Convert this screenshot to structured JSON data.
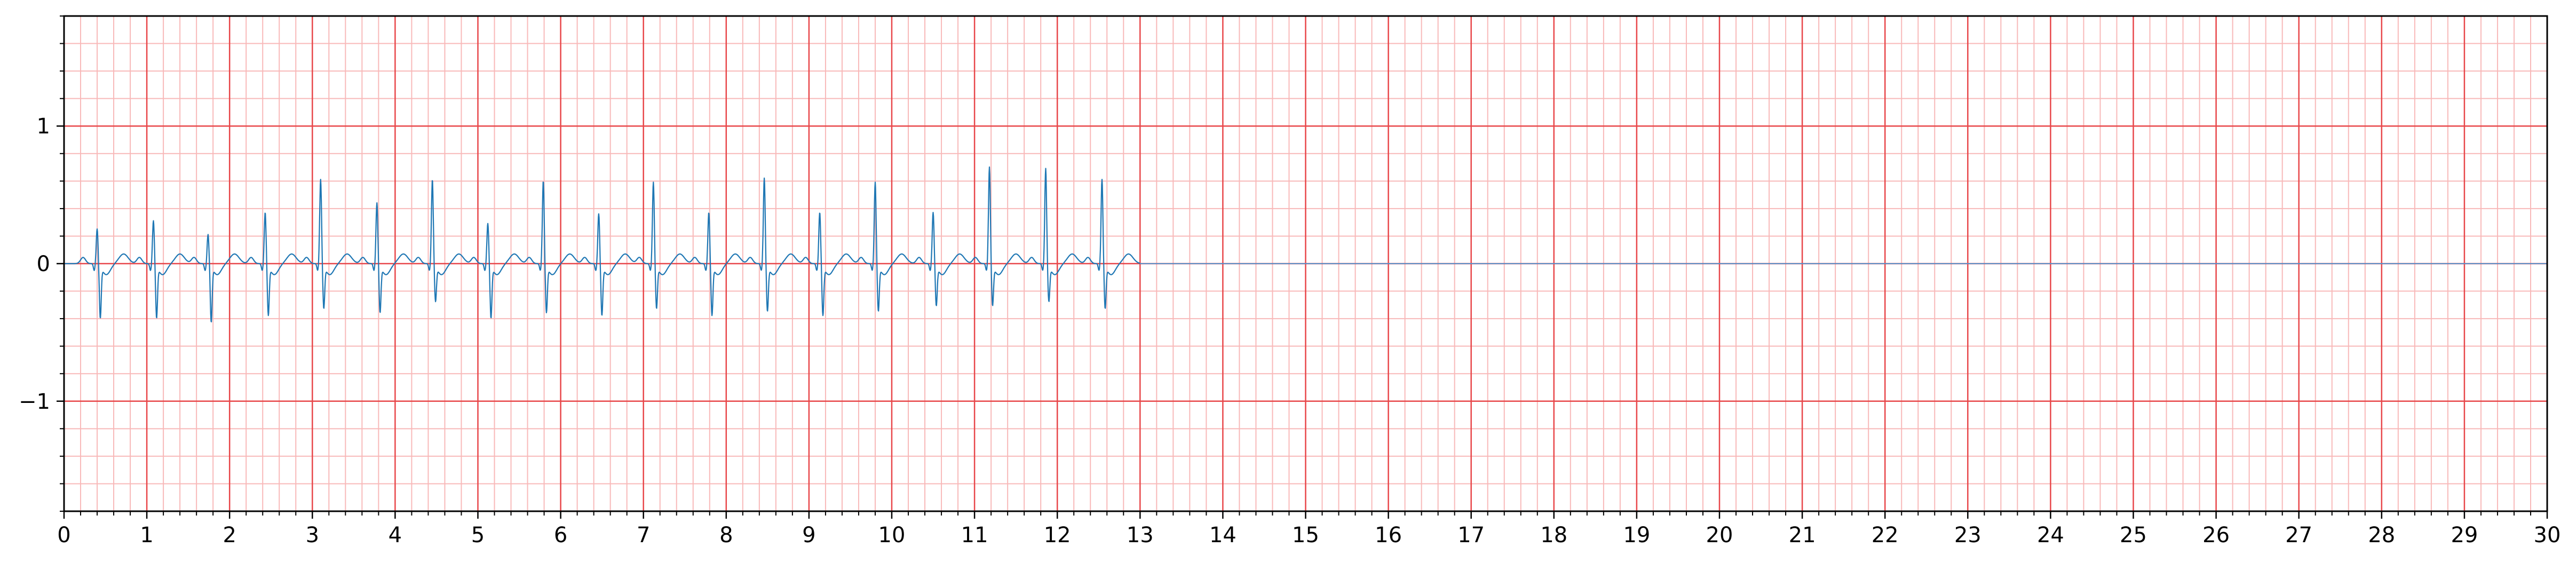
{
  "chart_data": {
    "type": "line",
    "title": "",
    "xlabel": "",
    "ylabel": "",
    "xlim": [
      0,
      30
    ],
    "ylim": [
      -1.8,
      1.8
    ],
    "x_ticks": [
      0,
      1,
      2,
      3,
      4,
      5,
      6,
      7,
      8,
      9,
      10,
      11,
      12,
      13,
      14,
      15,
      16,
      17,
      18,
      19,
      20,
      21,
      22,
      23,
      24,
      25,
      26,
      27,
      28,
      29,
      30
    ],
    "x_tick_labels": [
      "0",
      "1",
      "2",
      "3",
      "4",
      "5",
      "6",
      "7",
      "8",
      "9",
      "10",
      "11",
      "12",
      "13",
      "14",
      "15",
      "16",
      "17",
      "18",
      "19",
      "20",
      "21",
      "22",
      "23",
      "24",
      "25",
      "26",
      "27",
      "28",
      "29",
      "30"
    ],
    "y_ticks": [
      -1,
      0,
      1
    ],
    "y_tick_labels": [
      "−1",
      "0",
      "1"
    ],
    "grid": {
      "major": true,
      "minor": true,
      "major_x_step": 1,
      "major_y_step": 1,
      "minor_x_step": 0.2,
      "minor_y_step": 0.2
    },
    "colors": {
      "major_grid": "#e8474a",
      "minor_grid": "#f8b9b9",
      "trace": "#1f77b4",
      "baseline": "#5b8fc7"
    },
    "series": [
      {
        "signal_end": 13.0,
        "baseline_end": 30,
        "beats": [
          {
            "t": 0.4,
            "r": 0.26,
            "s": -0.37
          },
          {
            "t": 1.08,
            "r": 0.32,
            "s": -0.37
          },
          {
            "t": 1.74,
            "r": 0.22,
            "s": -0.4
          },
          {
            "t": 2.43,
            "r": 0.38,
            "s": -0.35
          },
          {
            "t": 3.1,
            "r": 0.62,
            "s": -0.3
          },
          {
            "t": 3.78,
            "r": 0.45,
            "s": -0.33
          },
          {
            "t": 4.45,
            "r": 0.62,
            "s": -0.25
          },
          {
            "t": 5.12,
            "r": 0.3,
            "s": -0.37
          },
          {
            "t": 5.79,
            "r": 0.61,
            "s": -0.33
          },
          {
            "t": 6.46,
            "r": 0.37,
            "s": -0.35
          },
          {
            "t": 7.12,
            "r": 0.6,
            "s": -0.3
          },
          {
            "t": 7.79,
            "r": 0.38,
            "s": -0.35
          },
          {
            "t": 8.46,
            "r": 0.63,
            "s": -0.32
          },
          {
            "t": 9.13,
            "r": 0.38,
            "s": -0.35
          },
          {
            "t": 9.8,
            "r": 0.6,
            "s": -0.32
          },
          {
            "t": 10.5,
            "r": 0.38,
            "s": -0.28
          },
          {
            "t": 11.18,
            "r": 0.71,
            "s": -0.28
          },
          {
            "t": 11.86,
            "r": 0.7,
            "s": -0.25
          },
          {
            "t": 12.54,
            "r": 0.62,
            "s": -0.3
          }
        ]
      }
    ]
  }
}
